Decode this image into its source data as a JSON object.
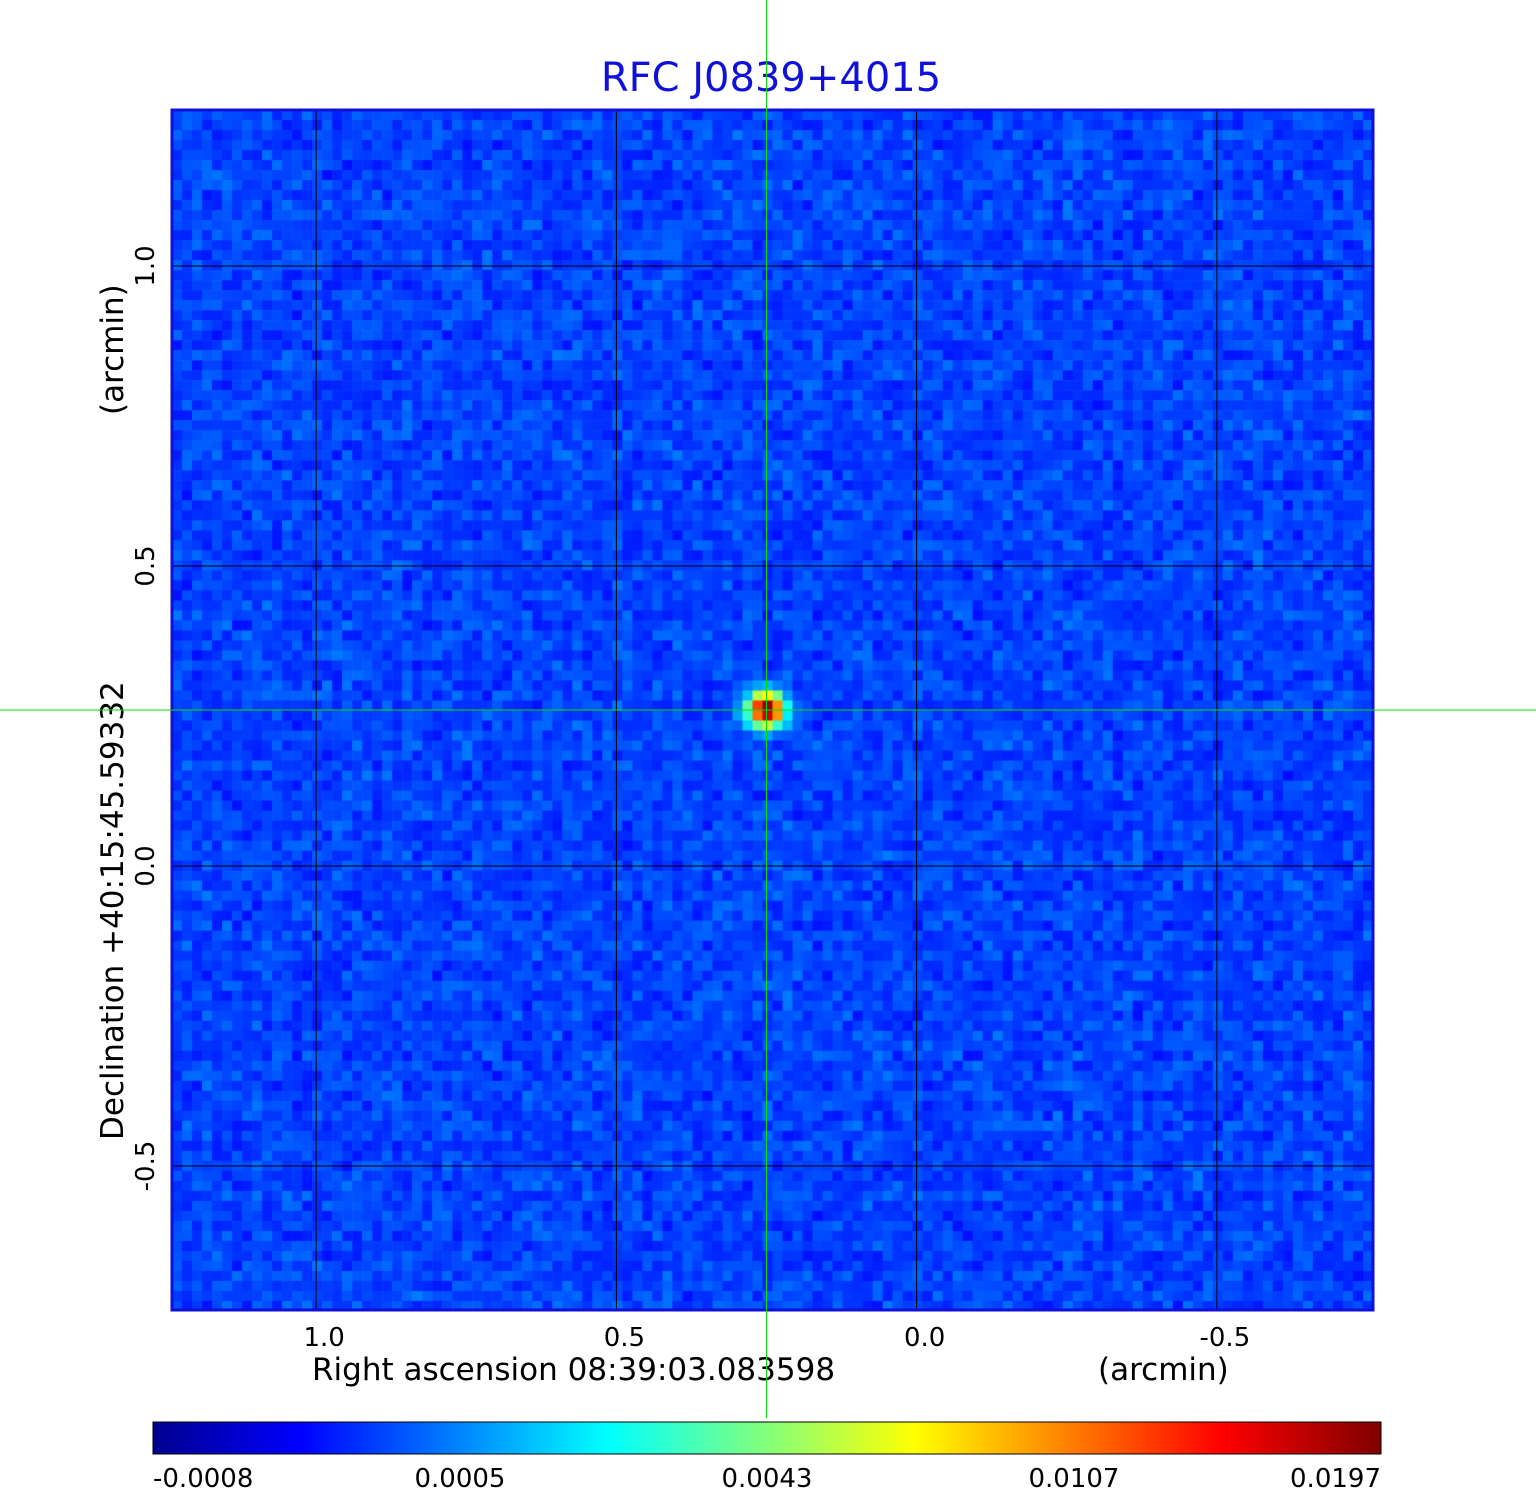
{
  "chart_data": {
    "type": "heatmap",
    "title": "RFC J0839+4015",
    "xlabel": "Right ascension  08:39:03.083598",
    "xunit": "(arcmin)",
    "ylabel": "Declination  +40:15:45.59332",
    "yunit": "(arcmin)",
    "x_range": [
      1.24,
      -0.76
    ],
    "y_range": [
      -0.74,
      1.26
    ],
    "x_ticks": [
      {
        "value": 1.0,
        "label": "1.0"
      },
      {
        "value": 0.5,
        "label": "0.5"
      },
      {
        "value": 0.0,
        "label": "0.0"
      },
      {
        "value": -0.5,
        "label": "-0.5"
      }
    ],
    "y_ticks": [
      {
        "value": 1.0,
        "label": "1.0"
      },
      {
        "value": 0.5,
        "label": "0.5"
      },
      {
        "value": 0.0,
        "label": "0.0"
      },
      {
        "value": -0.5,
        "label": "-0.5"
      }
    ],
    "grid": true,
    "colormap": "jet",
    "colorbar": {
      "orientation": "horizontal",
      "placement": "bottom",
      "ticks": [
        {
          "value": -0.0008,
          "label": "-0.0008"
        },
        {
          "value": 0.0005,
          "label": "0.0005"
        },
        {
          "value": 0.0043,
          "label": "0.0043"
        },
        {
          "value": 0.0107,
          "label": "0.0107"
        },
        {
          "value": 0.0197,
          "label": "0.0197"
        }
      ]
    },
    "background_level": 0.0003,
    "peak": {
      "x": 0.25,
      "y": 0.26,
      "value": 0.0197
    },
    "crosshair": {
      "x": 0.25,
      "y": 0.26
    },
    "colors": {
      "title": "#1010d8",
      "frame": "#1010d8",
      "grid": "#000000",
      "crosshair": "#00e000",
      "background_pixel": "#1a64f0"
    }
  }
}
